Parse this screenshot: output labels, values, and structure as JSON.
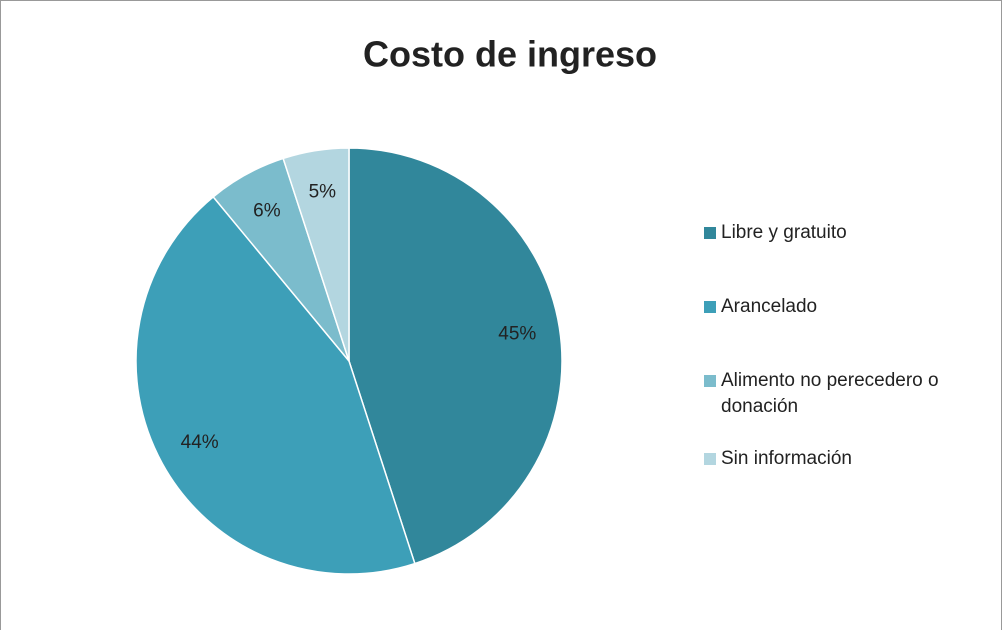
{
  "chart_data": {
    "type": "pie",
    "title": "Costo de ingreso",
    "categories": [
      "Libre y gratuito",
      "Arancelado",
      "Alimento no perecedero o donación",
      "Sin información"
    ],
    "values": [
      45,
      44,
      6,
      5
    ],
    "value_labels": [
      "45%",
      "44%",
      "6%",
      "5%"
    ],
    "colors": [
      "#31879b",
      "#3d9fb8",
      "#7bbccc",
      "#b3d6e0"
    ],
    "legend": "right"
  }
}
